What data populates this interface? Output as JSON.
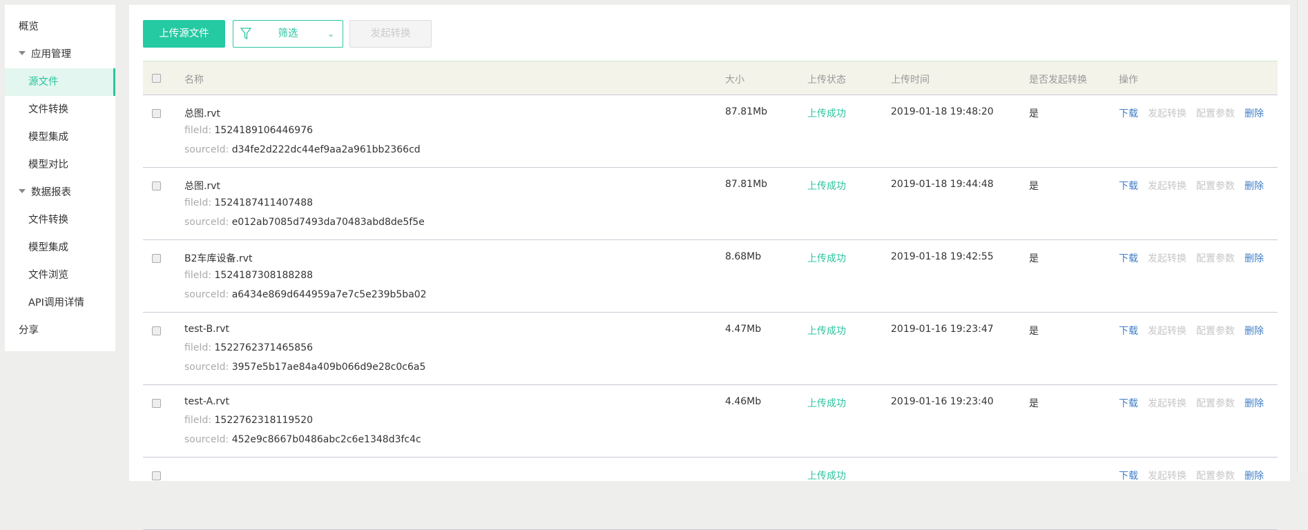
{
  "sidebar": {
    "items": [
      {
        "label": "概览",
        "type": "top"
      },
      {
        "label": "应用管理",
        "type": "group"
      },
      {
        "label": "源文件",
        "type": "sub",
        "active": true
      },
      {
        "label": "文件转换",
        "type": "sub"
      },
      {
        "label": "模型集成",
        "type": "sub"
      },
      {
        "label": "模型对比",
        "type": "sub"
      },
      {
        "label": "数据报表",
        "type": "group"
      },
      {
        "label": "文件转换",
        "type": "sub"
      },
      {
        "label": "模型集成",
        "type": "sub"
      },
      {
        "label": "文件浏览",
        "type": "sub"
      },
      {
        "label": "API调用详情",
        "type": "sub"
      },
      {
        "label": "分享",
        "type": "top"
      }
    ]
  },
  "toolbar": {
    "upload": "上传源文件",
    "filter": "筛选",
    "start_convert": "发起转换"
  },
  "table": {
    "headers": [
      "名称",
      "大小",
      "上传状态",
      "上传时间",
      "是否发起转换",
      "操作"
    ],
    "fileid_label": "fileId:",
    "sourceid_label": "sourceId:",
    "actions": [
      "下载",
      "发起转换",
      "配置参数",
      "删除"
    ],
    "rows": [
      {
        "name": "总图.rvt",
        "fileId": "1524189106446976",
        "sourceId": "d34fe2d222dc44ef9aa2a961bb2366cd",
        "size": "87.81Mb",
        "status": "上传成功",
        "time": "2019-01-18 19:48:20",
        "converted": "是"
      },
      {
        "name": "总图.rvt",
        "fileId": "1524187411407488",
        "sourceId": "e012ab7085d7493da70483abd8de5f5e",
        "size": "87.81Mb",
        "status": "上传成功",
        "time": "2019-01-18 19:44:48",
        "converted": "是"
      },
      {
        "name": "B2车库设备.rvt",
        "fileId": "1524187308188288",
        "sourceId": "a6434e869d644959a7e7c5e239b5ba02",
        "size": "8.68Mb",
        "status": "上传成功",
        "time": "2019-01-18 19:42:55",
        "converted": "是"
      },
      {
        "name": "test-B.rvt",
        "fileId": "1522762371465856",
        "sourceId": "3957e5b17ae84a409b066d9e28c0c6a5",
        "size": "4.47Mb",
        "status": "上传成功",
        "time": "2019-01-16 19:23:47",
        "converted": "是"
      },
      {
        "name": "test-A.rvt",
        "fileId": "1522762318119520",
        "sourceId": "452e9c8667b0486abc2c6e1348d3fc4c",
        "size": "4.46Mb",
        "status": "上传成功",
        "time": "2019-01-16 19:23:40",
        "converted": "是"
      },
      {
        "name": "",
        "fileId": "",
        "sourceId": "",
        "size": "",
        "status": "上传成功",
        "time": "",
        "converted": ""
      }
    ]
  },
  "colors": {
    "accent": "#25c9a2",
    "link": "#3f7ec8",
    "disabled": "#c6c6c6"
  }
}
